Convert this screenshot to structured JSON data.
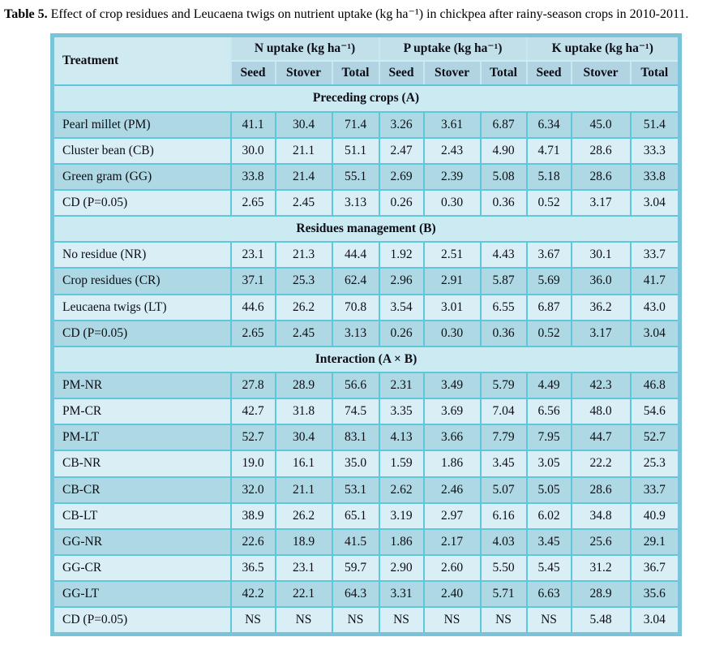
{
  "caption": {
    "label": "Table 5.",
    "text": " Effect of crop residues and Leucaena twigs on nutrient uptake (kg ha⁻¹) in chickpea after rainy-season crops in 2010-2011."
  },
  "colors": {
    "frame": "#79c4d8",
    "grid": "#5ec7db",
    "header_group": "#c2e0ea",
    "header_sub": "#b2d4e2",
    "section_band": "#cbeaf2",
    "row_dark": "#aed8e3",
    "row_light": "#d9eff5"
  },
  "table": {
    "treatment_header": "Treatment",
    "groups": [
      {
        "label": "N uptake (kg ha⁻¹)"
      },
      {
        "label": "P uptake (kg ha⁻¹)"
      },
      {
        "label": "K uptake (kg ha⁻¹)"
      }
    ],
    "sub_headers": [
      "Seed",
      "Stover",
      "Total",
      "Seed",
      "Stover",
      "Total",
      "Seed",
      "Stover",
      "Total"
    ],
    "sections": [
      {
        "title": "Preceding crops (A)",
        "rows": [
          {
            "treatment": "Pearl millet (PM)",
            "shade": "dark",
            "values": [
              "41.1",
              "30.4",
              "71.4",
              "3.26",
              "3.61",
              "6.87",
              "6.34",
              "45.0",
              "51.4"
            ]
          },
          {
            "treatment": "Cluster bean (CB)",
            "shade": "light",
            "values": [
              "30.0",
              "21.1",
              "51.1",
              "2.47",
              "2.43",
              "4.90",
              "4.71",
              "28.6",
              "33.3"
            ]
          },
          {
            "treatment": "Green gram (GG)",
            "shade": "dark",
            "values": [
              "33.8",
              "21.4",
              "55.1",
              "2.69",
              "2.39",
              "5.08",
              "5.18",
              "28.6",
              "33.8"
            ]
          },
          {
            "treatment": "CD (P=0.05)",
            "shade": "light",
            "values": [
              "2.65",
              "2.45",
              "3.13",
              "0.26",
              "0.30",
              "0.36",
              "0.52",
              "3.17",
              "3.04"
            ]
          }
        ]
      },
      {
        "title": "Residues management (B)",
        "rows": [
          {
            "treatment": "No residue (NR)",
            "shade": "light",
            "values": [
              "23.1",
              "21.3",
              "44.4",
              "1.92",
              "2.51",
              "4.43",
              "3.67",
              "30.1",
              "33.7"
            ]
          },
          {
            "treatment": "Crop residues (CR)",
            "shade": "dark",
            "values": [
              "37.1",
              "25.3",
              "62.4",
              "2.96",
              "2.91",
              "5.87",
              "5.69",
              "36.0",
              "41.7"
            ]
          },
          {
            "treatment": "Leucaena twigs (LT)",
            "shade": "light",
            "values": [
              "44.6",
              "26.2",
              "70.8",
              "3.54",
              "3.01",
              "6.55",
              "6.87",
              "36.2",
              "43.0"
            ]
          },
          {
            "treatment": "CD (P=0.05)",
            "shade": "dark",
            "values": [
              "2.65",
              "2.45",
              "3.13",
              "0.26",
              "0.30",
              "0.36",
              "0.52",
              "3.17",
              "3.04"
            ]
          }
        ]
      },
      {
        "title": "Interaction (A × B)",
        "rows": [
          {
            "treatment": "PM-NR",
            "shade": "dark",
            "values": [
              "27.8",
              "28.9",
              "56.6",
              "2.31",
              "3.49",
              "5.79",
              "4.49",
              "42.3",
              "46.8"
            ]
          },
          {
            "treatment": "PM-CR",
            "shade": "light",
            "values": [
              "42.7",
              "31.8",
              "74.5",
              "3.35",
              "3.69",
              "7.04",
              "6.56",
              "48.0",
              "54.6"
            ]
          },
          {
            "treatment": "PM-LT",
            "shade": "dark",
            "values": [
              "52.7",
              "30.4",
              "83.1",
              "4.13",
              "3.66",
              "7.79",
              "7.95",
              "44.7",
              "52.7"
            ]
          },
          {
            "treatment": "CB-NR",
            "shade": "light",
            "values": [
              "19.0",
              "16.1",
              "35.0",
              "1.59",
              "1.86",
              "3.45",
              "3.05",
              "22.2",
              "25.3"
            ]
          },
          {
            "treatment": "CB-CR",
            "shade": "dark",
            "values": [
              "32.0",
              "21.1",
              "53.1",
              "2.62",
              "2.46",
              "5.07",
              "5.05",
              "28.6",
              "33.7"
            ]
          },
          {
            "treatment": "CB-LT",
            "shade": "light",
            "values": [
              "38.9",
              "26.2",
              "65.1",
              "3.19",
              "2.97",
              "6.16",
              "6.02",
              "34.8",
              "40.9"
            ]
          },
          {
            "treatment": "GG-NR",
            "shade": "dark",
            "values": [
              "22.6",
              "18.9",
              "41.5",
              "1.86",
              "2.17",
              "4.03",
              "3.45",
              "25.6",
              "29.1"
            ]
          },
          {
            "treatment": "GG-CR",
            "shade": "light",
            "values": [
              "36.5",
              "23.1",
              "59.7",
              "2.90",
              "2.60",
              "5.50",
              "5.45",
              "31.2",
              "36.7"
            ]
          },
          {
            "treatment": "GG-LT",
            "shade": "dark",
            "values": [
              "42.2",
              "22.1",
              "64.3",
              "3.31",
              "2.40",
              "5.71",
              "6.63",
              "28.9",
              "35.6"
            ]
          },
          {
            "treatment": "CD (P=0.05)",
            "shade": "light",
            "values": [
              "NS",
              "NS",
              "NS",
              "NS",
              "NS",
              "NS",
              "NS",
              "5.48",
              "3.04"
            ]
          }
        ]
      }
    ]
  }
}
